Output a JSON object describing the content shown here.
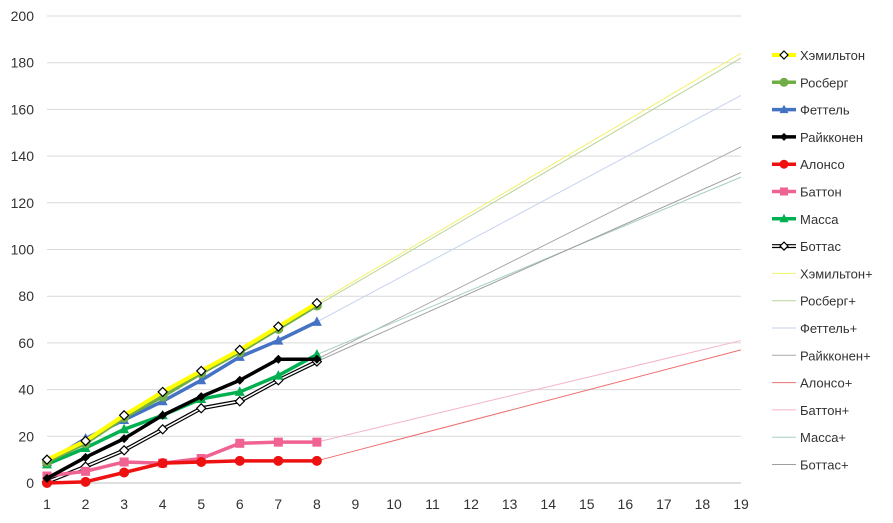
{
  "chart_data": {
    "type": "line",
    "x": [
      1,
      2,
      3,
      4,
      5,
      6,
      7,
      8,
      9,
      10,
      11,
      12,
      13,
      14,
      15,
      16,
      17,
      18,
      19
    ],
    "xlim": [
      1,
      19
    ],
    "ylim": [
      0,
      200
    ],
    "y_ticks": [
      0,
      20,
      40,
      60,
      80,
      100,
      120,
      140,
      160,
      180,
      200
    ],
    "grid": "horizontal",
    "legend": "right",
    "series": [
      {
        "name": "Хэмильтон",
        "color": "#FFFF00",
        "marker": "diamond-open",
        "width": 4,
        "x": [
          1,
          2,
          3,
          4,
          5,
          6,
          7,
          8
        ],
        "values": [
          10,
          18,
          29,
          39,
          48,
          57,
          67,
          77
        ]
      },
      {
        "name": "Росберг",
        "color": "#70AD47",
        "marker": "circle",
        "width": 3.5,
        "x": [
          1,
          2,
          3,
          4,
          5,
          6,
          7,
          8
        ],
        "values": [
          9,
          17,
          28,
          37,
          47,
          56,
          66,
          76
        ]
      },
      {
        "name": "Феттель",
        "color": "#4472C4",
        "marker": "triangle",
        "width": 3.5,
        "x": [
          1,
          2,
          3,
          4,
          5,
          6,
          7,
          8
        ],
        "values": [
          9,
          19,
          27,
          35,
          44,
          54,
          61,
          69
        ]
      },
      {
        "name": "Райкконен",
        "color": "#000000",
        "marker": "diamond",
        "width": 3.5,
        "x": [
          1,
          2,
          3,
          4,
          5,
          6,
          7,
          8
        ],
        "values": [
          2,
          11,
          19,
          29,
          37,
          44,
          53,
          53
        ]
      },
      {
        "name": "Алонсо",
        "color": "#EE1111",
        "marker": "circle",
        "width": 3.5,
        "x": [
          1,
          2,
          3,
          4,
          5,
          6,
          7,
          8
        ],
        "values": [
          0,
          0.5,
          4.5,
          8.5,
          9,
          9.5,
          9.5,
          9.5
        ]
      },
      {
        "name": "Баттон",
        "color": "#F06292",
        "marker": "square",
        "width": 3.5,
        "x": [
          1,
          2,
          3,
          4,
          5,
          6,
          7,
          8
        ],
        "values": [
          3,
          5,
          9,
          8.5,
          10.5,
          17,
          17.5,
          17.5
        ]
      },
      {
        "name": "Масса",
        "color": "#00B050",
        "marker": "triangle",
        "width": 3.5,
        "x": [
          1,
          2,
          3,
          4,
          5,
          6,
          7,
          8
        ],
        "values": [
          8,
          15,
          23,
          29,
          36,
          39,
          46,
          55
        ]
      },
      {
        "name": "Боттас",
        "color": "#111111",
        "marker": "diamond-open",
        "width": 3.5,
        "double": true,
        "x": [
          1,
          2,
          3,
          4,
          5,
          6,
          7,
          8
        ],
        "values": [
          0.5,
          7,
          14,
          23,
          32,
          35,
          44,
          52
        ]
      },
      {
        "name": "Хэмильтон+",
        "color": "#F2F26A",
        "marker": "none",
        "width": 1,
        "x": [
          8,
          19
        ],
        "values": [
          77,
          184
        ]
      },
      {
        "name": "Росберг+",
        "color": "#B9D49A",
        "marker": "none",
        "width": 1,
        "x": [
          8,
          19
        ],
        "values": [
          76,
          182
        ]
      },
      {
        "name": "Феттель+",
        "color": "#C5D3EC",
        "marker": "none",
        "width": 1,
        "x": [
          8,
          19
        ],
        "values": [
          69,
          166
        ]
      },
      {
        "name": "Райкконен+",
        "color": "#A9A9A9",
        "marker": "none",
        "width": 1,
        "x": [
          8,
          19
        ],
        "values": [
          53,
          144
        ]
      },
      {
        "name": "Алонсо+",
        "color": "#EE7070",
        "marker": "none",
        "width": 1,
        "x": [
          8,
          19
        ],
        "values": [
          9.5,
          57
        ]
      },
      {
        "name": "Баттон+",
        "color": "#F4B3C6",
        "marker": "none",
        "width": 1,
        "x": [
          8,
          19
        ],
        "values": [
          17.5,
          61
        ]
      },
      {
        "name": "Масса+",
        "color": "#A6CFC6",
        "marker": "none",
        "width": 1,
        "x": [
          8,
          19
        ],
        "values": [
          55,
          131
        ]
      },
      {
        "name": "Боттас+",
        "color": "#9E9E9E",
        "marker": "none",
        "width": 1,
        "x": [
          8,
          19
        ],
        "values": [
          52,
          133
        ]
      }
    ]
  }
}
